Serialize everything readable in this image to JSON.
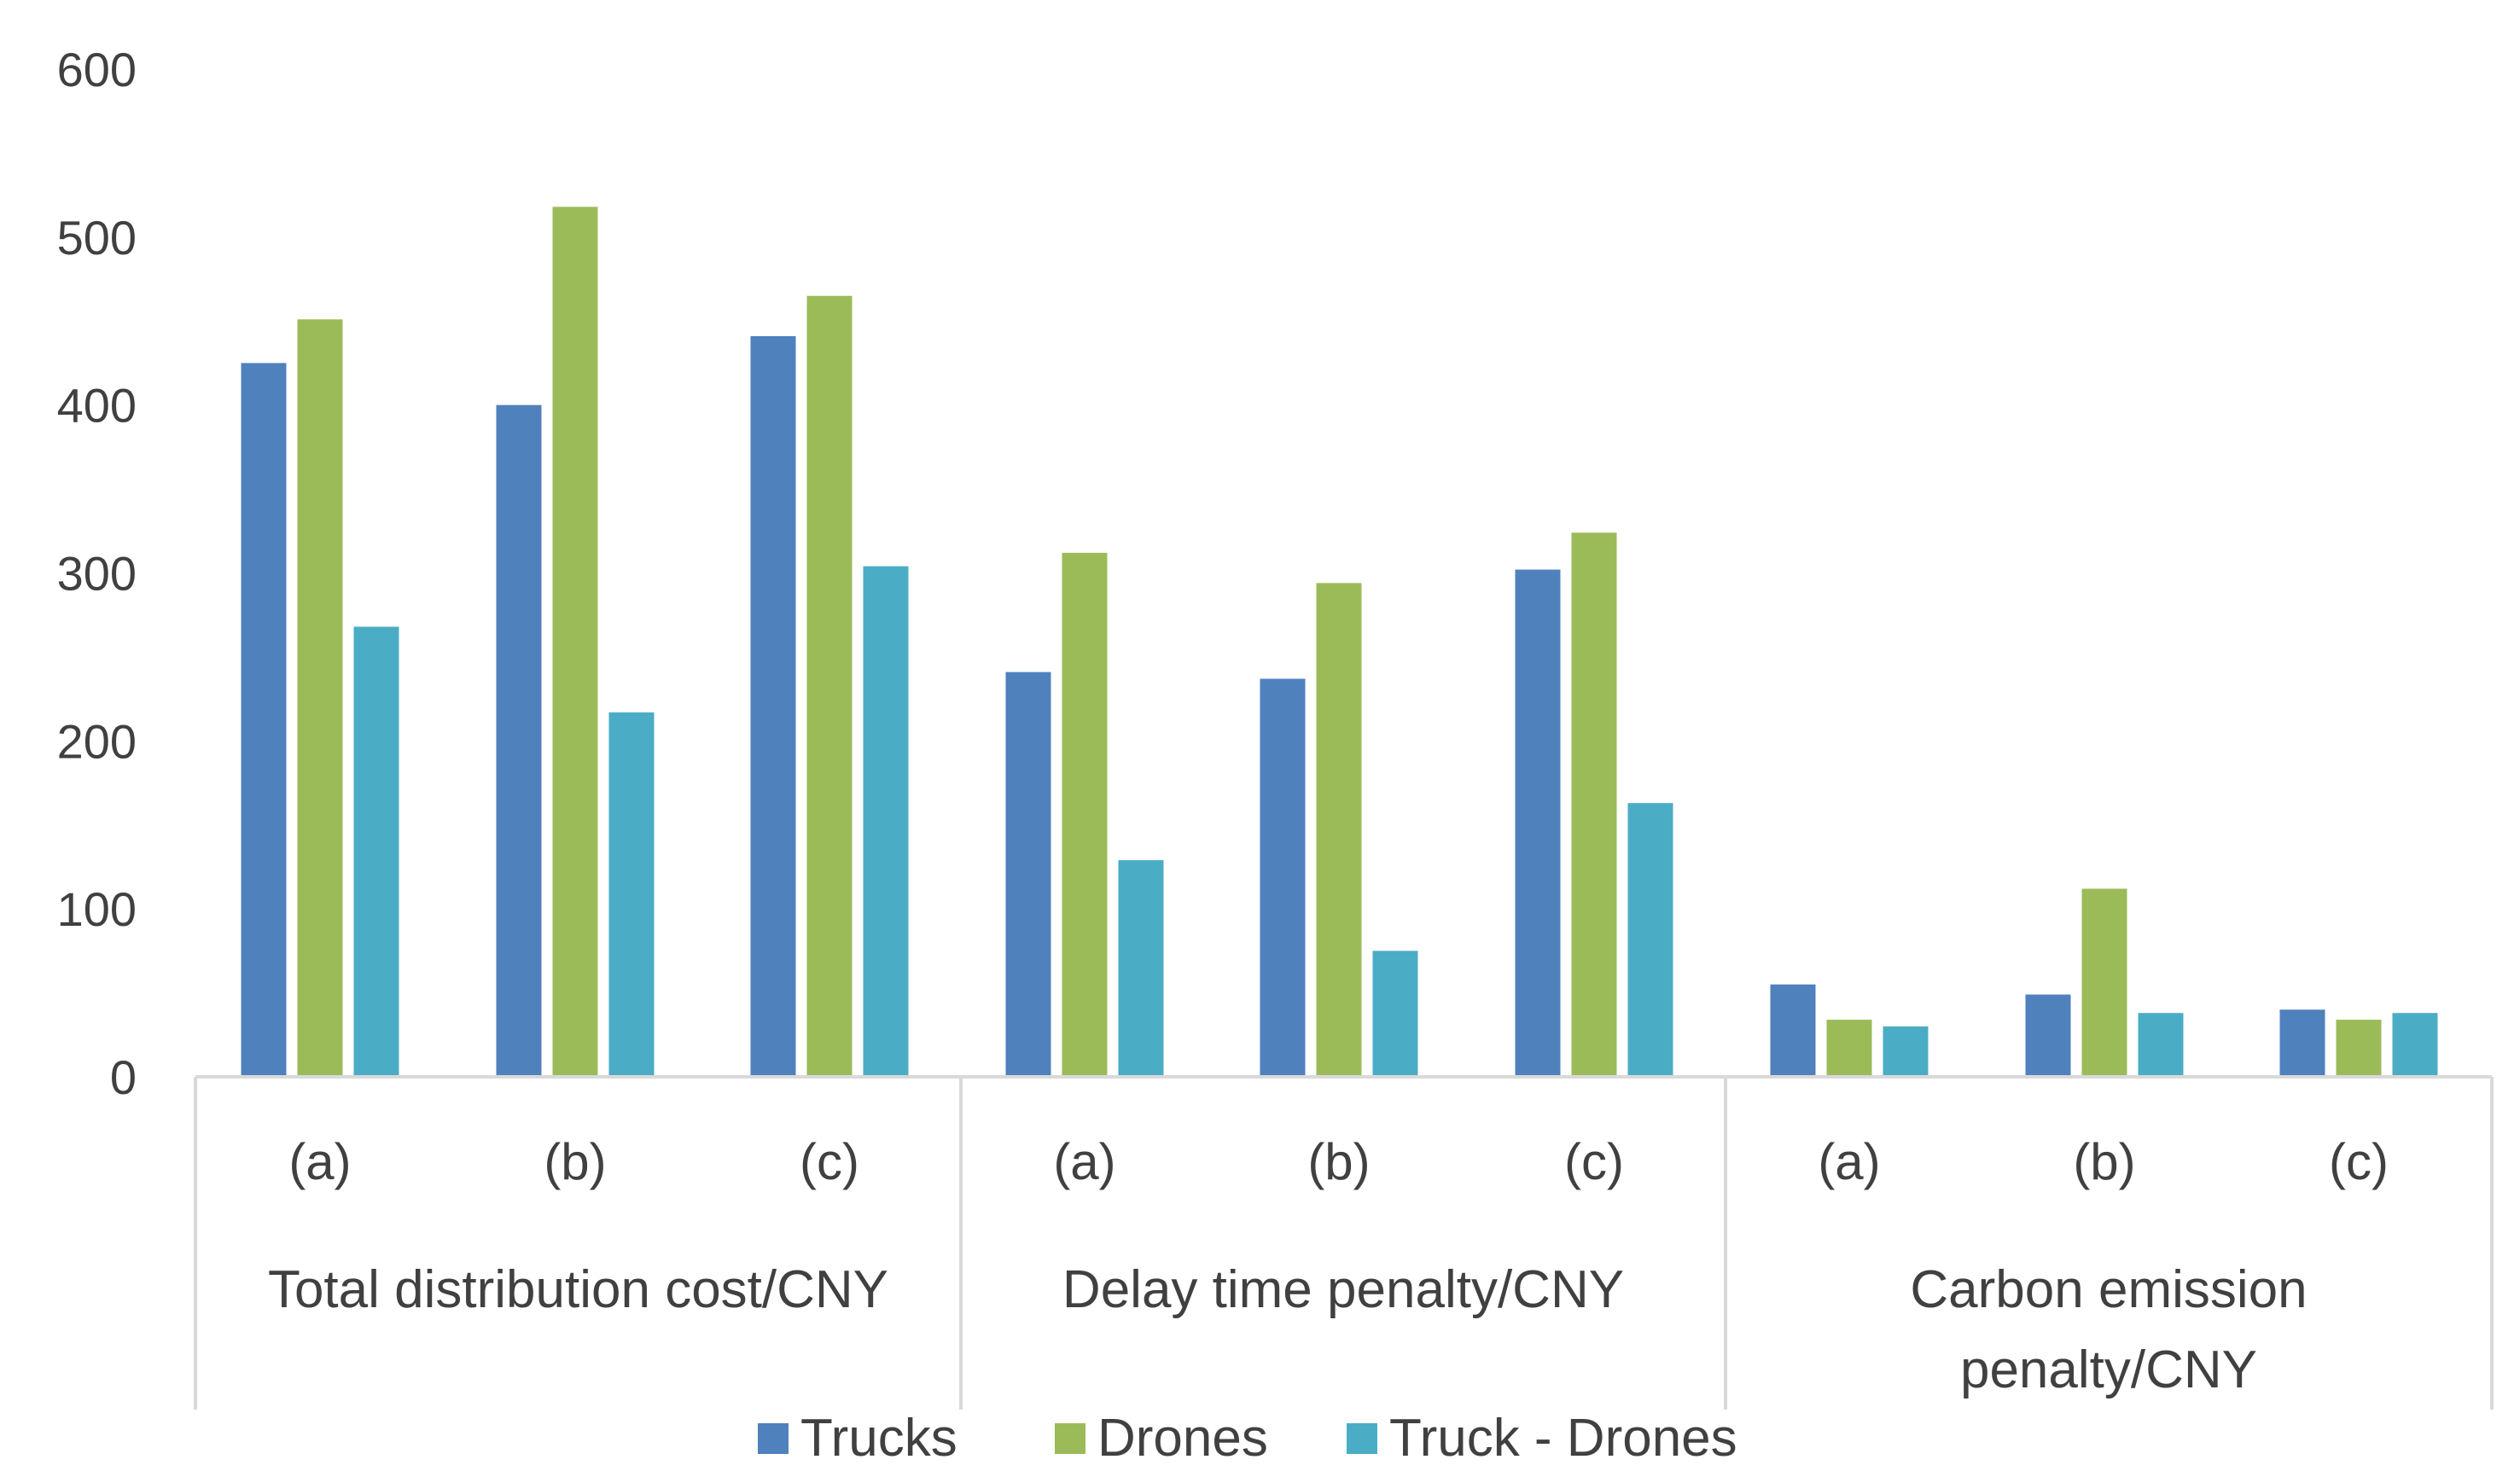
{
  "chart_data": {
    "type": "bar",
    "title": "",
    "xlabel": "",
    "ylabel": "",
    "ylim": [
      0,
      600
    ],
    "yticks": [
      0,
      100,
      200,
      300,
      400,
      500,
      600
    ],
    "grid": false,
    "legend_position": "bottom",
    "groups": [
      {
        "label": "Total distribution cost/CNY",
        "categories": [
          "(a)",
          "(b)",
          "(c)"
        ]
      },
      {
        "label": "Delay time penalty/CNY",
        "categories": [
          "(a)",
          "(b)",
          "(c)"
        ]
      },
      {
        "label_lines": [
          "Carbon emission",
          "penalty/CNY"
        ],
        "categories": [
          "(a)",
          "(b)",
          "(c)"
        ]
      }
    ],
    "series": [
      {
        "name": "Trucks",
        "color": "#4F81BD",
        "values": [
          425,
          400,
          441,
          241,
          237,
          302,
          55,
          49,
          40
        ]
      },
      {
        "name": "Drones",
        "color": "#9BBB59",
        "values": [
          451,
          518,
          465,
          312,
          294,
          324,
          34,
          112,
          34
        ]
      },
      {
        "name": "Truck - Drones",
        "color": "#4BACC6",
        "values": [
          268,
          217,
          304,
          129,
          75,
          163,
          30,
          38,
          38
        ]
      }
    ]
  }
}
